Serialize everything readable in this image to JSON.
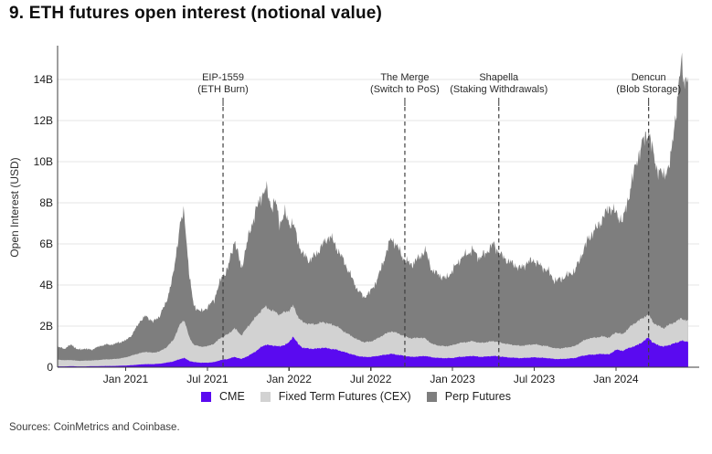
{
  "title": "9. ETH futures open interest (notional value)",
  "source": "Sources: CoinMetrics and Coinbase.",
  "legend": {
    "items": [
      {
        "label": "CME",
        "color": "#5a0af0"
      },
      {
        "label": "Fixed Term Futures (CEX)",
        "color": "#d2d2d2"
      },
      {
        "label": "Perp Futures",
        "color": "#7e7e7e"
      }
    ]
  },
  "chart_data": {
    "type": "area",
    "stacked": true,
    "title": "9. ETH futures open interest (notional value)",
    "xlabel": "",
    "ylabel": "Open Interest (USD)",
    "y_unit": "billions of USD",
    "ylim": [
      0,
      15.6
    ],
    "grid": "horizontal",
    "legend_position": "bottom",
    "x_unit": "months since Aug 2020",
    "x_span": [
      0,
      46.3
    ],
    "yticks": [
      {
        "label": "0",
        "value": 0
      },
      {
        "label": "2B",
        "value": 2
      },
      {
        "label": "4B",
        "value": 4
      },
      {
        "label": "6B",
        "value": 6
      },
      {
        "label": "8B",
        "value": 8
      },
      {
        "label": "10B",
        "value": 10
      },
      {
        "label": "12B",
        "value": 12
      },
      {
        "label": "14B",
        "value": 14
      }
    ],
    "xticks": [
      {
        "label": "Jan 2021",
        "t": 5
      },
      {
        "label": "Jul 2021",
        "t": 11
      },
      {
        "label": "Jan 2022",
        "t": 17
      },
      {
        "label": "Jul 2022",
        "t": 23
      },
      {
        "label": "Jan 2023",
        "t": 29
      },
      {
        "label": "Jul 2023",
        "t": 35
      },
      {
        "label": "Jan 2024",
        "t": 41
      }
    ],
    "annotations": [
      {
        "name": "EIP-1559",
        "detail": "(ETH Burn)",
        "t": 12.15
      },
      {
        "name": "The Merge",
        "detail": "(Switch to PoS)",
        "t": 25.5
      },
      {
        "name": "Shapella",
        "detail": "(Staking Withdrawals)",
        "t": 32.4
      },
      {
        "name": "Dencun",
        "detail": "(Blob Storage)",
        "t": 43.4
      }
    ],
    "series_names": [
      "CME",
      "Fixed Term Futures (CEX)",
      "Perp Futures"
    ],
    "series_colors": [
      "#5a0af0",
      "#d2d2d2",
      "#7e7e7e"
    ],
    "points_format": "[t_months_since_Aug2020, CME_B, FixedTermCEX_B, PerpFutures_B]",
    "points": [
      [
        0,
        0.04,
        0.33,
        0.63
      ],
      [
        0.5,
        0.04,
        0.3,
        0.56
      ],
      [
        1,
        0.05,
        0.3,
        0.75
      ],
      [
        1.5,
        0.04,
        0.27,
        0.54
      ],
      [
        2,
        0.04,
        0.28,
        0.58
      ],
      [
        2.5,
        0.05,
        0.28,
        0.52
      ],
      [
        3,
        0.05,
        0.3,
        0.65
      ],
      [
        3.5,
        0.06,
        0.32,
        0.72
      ],
      [
        4,
        0.06,
        0.33,
        0.71
      ],
      [
        4.5,
        0.07,
        0.35,
        0.78
      ],
      [
        5,
        0.08,
        0.4,
        0.82
      ],
      [
        5.5,
        0.1,
        0.48,
        1.02
      ],
      [
        6,
        0.13,
        0.55,
        1.52
      ],
      [
        6.5,
        0.15,
        0.6,
        1.75
      ],
      [
        7,
        0.15,
        0.55,
        1.5
      ],
      [
        7.5,
        0.17,
        0.6,
        1.73
      ],
      [
        8,
        0.22,
        0.75,
        2.23
      ],
      [
        8.5,
        0.28,
        1.05,
        3.17
      ],
      [
        9,
        0.4,
        1.7,
        4.9
      ],
      [
        9.3,
        0.45,
        1.85,
        5.2
      ],
      [
        9.7,
        0.3,
        1.1,
        2.9
      ],
      [
        10,
        0.25,
        0.85,
        1.9
      ],
      [
        10.5,
        0.22,
        0.78,
        1.7
      ],
      [
        11,
        0.22,
        0.8,
        1.88
      ],
      [
        11.5,
        0.25,
        0.9,
        2.15
      ],
      [
        12,
        0.35,
        1.1,
        2.85
      ],
      [
        12.5,
        0.4,
        1.2,
        3.2
      ],
      [
        13,
        0.5,
        1.4,
        4.3
      ],
      [
        13.5,
        0.4,
        1.15,
        3.25
      ],
      [
        14,
        0.55,
        1.45,
        4.3
      ],
      [
        14.5,
        0.75,
        1.65,
        5.1
      ],
      [
        15,
        1.0,
        1.8,
        5.6
      ],
      [
        15.3,
        1.1,
        1.85,
        5.75
      ],
      [
        15.7,
        1.05,
        1.7,
        5.05
      ],
      [
        16,
        1.05,
        1.65,
        5.4
      ],
      [
        16.3,
        1.0,
        1.55,
        4.45
      ],
      [
        16.7,
        1.1,
        1.6,
        4.8
      ],
      [
        17,
        1.2,
        1.55,
        4.25
      ],
      [
        17.3,
        1.5,
        1.5,
        4.0
      ],
      [
        17.7,
        1.1,
        1.3,
        3.6
      ],
      [
        18,
        0.95,
        1.25,
        3.3
      ],
      [
        18.5,
        0.9,
        1.2,
        3.1
      ],
      [
        19,
        0.9,
        1.2,
        3.4
      ],
      [
        19.5,
        0.95,
        1.25,
        3.8
      ],
      [
        20,
        0.9,
        1.2,
        4.3
      ],
      [
        20.5,
        0.85,
        1.15,
        3.8
      ],
      [
        21,
        0.75,
        1.0,
        3.45
      ],
      [
        21.5,
        0.65,
        0.9,
        2.95
      ],
      [
        22,
        0.55,
        0.8,
        2.45
      ],
      [
        22.5,
        0.5,
        0.72,
        2.18
      ],
      [
        23,
        0.5,
        0.75,
        2.45
      ],
      [
        23.5,
        0.55,
        0.85,
        2.9
      ],
      [
        24,
        0.6,
        1.0,
        3.7
      ],
      [
        24.5,
        0.65,
        1.1,
        4.55
      ],
      [
        25,
        0.6,
        1.05,
        4.15
      ],
      [
        25.5,
        0.55,
        0.95,
        3.7
      ],
      [
        26,
        0.5,
        0.9,
        3.6
      ],
      [
        26.5,
        0.52,
        0.92,
        3.86
      ],
      [
        27,
        0.55,
        0.85,
        4.3
      ],
      [
        27.5,
        0.48,
        0.65,
        3.57
      ],
      [
        28,
        0.45,
        0.6,
        3.45
      ],
      [
        28.5,
        0.44,
        0.58,
        3.28
      ],
      [
        29,
        0.45,
        0.62,
        3.63
      ],
      [
        29.5,
        0.5,
        0.68,
        4.02
      ],
      [
        30,
        0.52,
        0.7,
        4.28
      ],
      [
        30.5,
        0.55,
        0.72,
        4.43
      ],
      [
        31,
        0.5,
        0.68,
        4.12
      ],
      [
        31.5,
        0.52,
        0.7,
        4.38
      ],
      [
        32,
        0.55,
        0.72,
        4.73
      ],
      [
        32.5,
        0.52,
        0.68,
        4.3
      ],
      [
        33,
        0.48,
        0.65,
        4.07
      ],
      [
        33.5,
        0.46,
        0.62,
        3.92
      ],
      [
        34,
        0.44,
        0.6,
        3.76
      ],
      [
        34.5,
        0.46,
        0.62,
        4.02
      ],
      [
        35,
        0.48,
        0.64,
        4.08
      ],
      [
        35.5,
        0.46,
        0.6,
        3.84
      ],
      [
        36,
        0.44,
        0.58,
        3.68
      ],
      [
        36.5,
        0.4,
        0.52,
        3.28
      ],
      [
        37,
        0.4,
        0.52,
        3.38
      ],
      [
        37.5,
        0.42,
        0.55,
        3.53
      ],
      [
        38,
        0.45,
        0.58,
        3.67
      ],
      [
        38.5,
        0.55,
        0.7,
        4.25
      ],
      [
        39,
        0.6,
        0.8,
        4.9
      ],
      [
        39.5,
        0.62,
        0.82,
        5.26
      ],
      [
        40,
        0.65,
        0.85,
        5.7
      ],
      [
        40.5,
        0.62,
        0.82,
        6.36
      ],
      [
        41,
        0.85,
        0.85,
        5.8
      ],
      [
        41.5,
        0.8,
        0.8,
        5.5
      ],
      [
        42,
        0.95,
        1.0,
        6.55
      ],
      [
        42.5,
        1.05,
        1.15,
        7.8
      ],
      [
        43,
        1.25,
        1.15,
        8.6
      ],
      [
        43.4,
        1.45,
        1.15,
        8.9
      ],
      [
        43.7,
        1.2,
        1.0,
        8.3
      ],
      [
        44,
        1.1,
        0.95,
        7.65
      ],
      [
        44.5,
        1.0,
        0.9,
        7.4
      ],
      [
        45,
        1.1,
        1.0,
        7.9
      ],
      [
        45.5,
        1.2,
        1.05,
        10.75
      ],
      [
        45.8,
        1.3,
        1.1,
        12.4
      ],
      [
        46,
        1.25,
        1.05,
        11.7
      ],
      [
        46.3,
        1.25,
        1.0,
        11.95
      ]
    ],
    "render_hints": {
      "noise_amp_total": 0.065,
      "noise_amp_mid": 0.04,
      "noise_amp_cme": 0.05,
      "grid_color": "#e6e6e6",
      "axis_color": "#3d3d3d",
      "event_line_color": "#3f3f3f"
    }
  }
}
